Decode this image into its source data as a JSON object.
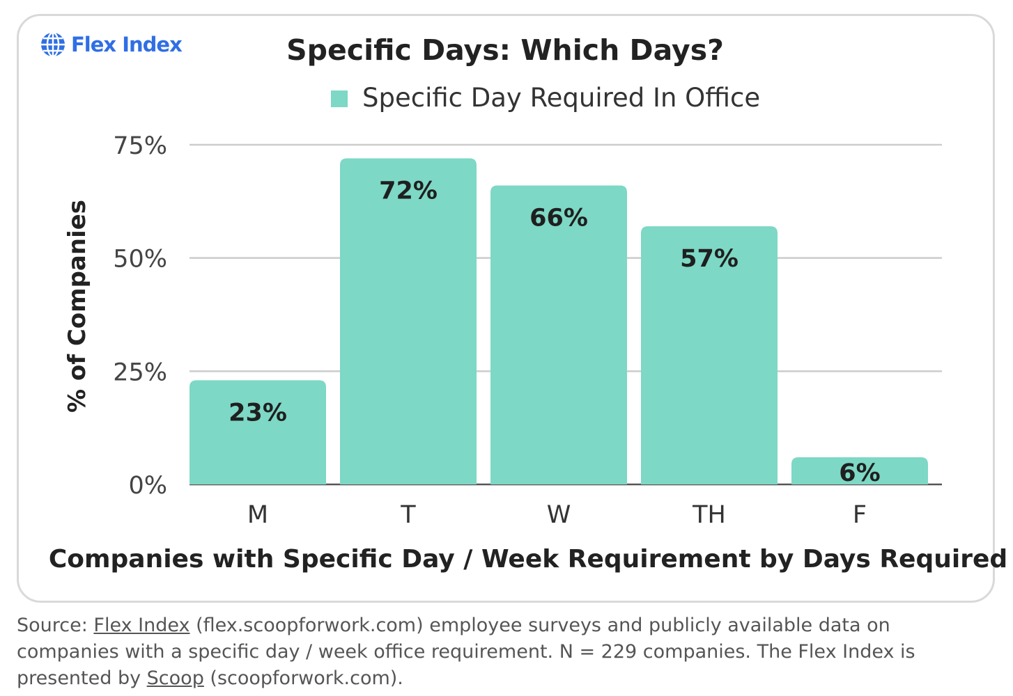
{
  "brand": {
    "name": "Flex Index",
    "color": "#2f6fe4",
    "icon": "globe-icon"
  },
  "chart_data": {
    "type": "bar",
    "title": "Specific Days: Which Days?",
    "legend": {
      "position": "top",
      "entries": [
        "Specific Day Required In Office"
      ]
    },
    "categories": [
      "M",
      "T",
      "W",
      "TH",
      "F"
    ],
    "series": [
      {
        "name": "Specific Day Required In Office",
        "values": [
          23,
          72,
          66,
          57,
          6
        ],
        "labels": [
          "23%",
          "72%",
          "66%",
          "57%",
          "6%"
        ],
        "color": "#7dd8c5"
      }
    ],
    "xlabel": "Companies with Specific Day / Week Requirement by Days Required",
    "ylabel": "% of Companies",
    "ylim": [
      0,
      75
    ],
    "yticks": [
      0,
      25,
      50,
      75
    ],
    "ytick_labels": [
      "0%",
      "25%",
      "50%",
      "75%"
    ],
    "grid": true
  },
  "footer": {
    "source_prefix": "Source: ",
    "source_link": "Flex Index",
    "source_line1_rest": " (flex.scoopforwork.com) employee surveys and publicly available data on",
    "source_line2": "companies with a specific day / week office requirement. N = 229 companies. The Flex Index is",
    "source_line3_prefix": "presented by ",
    "source_line3_link": "Scoop",
    "source_line3_rest": " (scoopforwork.com)."
  }
}
